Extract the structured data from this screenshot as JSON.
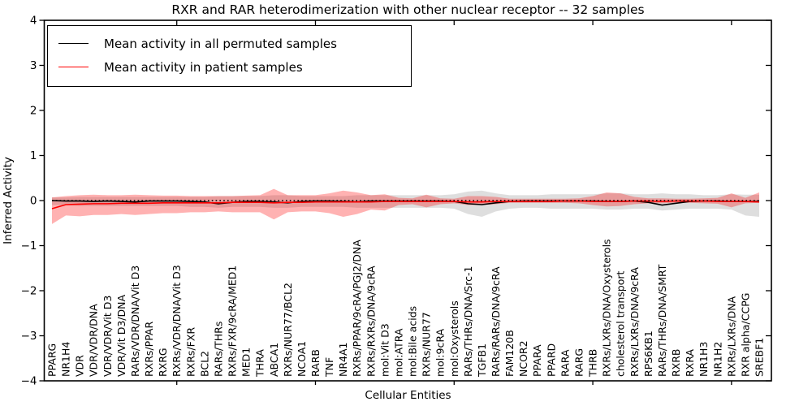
{
  "figure": {
    "title": "RXR and RAR heterodimerization with other nuclear receptor -- 32 samples",
    "xlabel": "Cellular Entities",
    "ylabel": "Inferred Activity"
  },
  "legend": {
    "items": [
      {
        "label": "Mean activity in all permuted samples",
        "color": "#000000"
      },
      {
        "label": "Mean activity in patient samples",
        "color": "#ff0000"
      }
    ]
  },
  "chart_data": {
    "type": "line",
    "title": "RXR and RAR heterodimerization with other nuclear receptor -- 32 samples",
    "xlabel": "Cellular Entities",
    "ylabel": "Inferred Activity",
    "ylim": [
      -4,
      4
    ],
    "yticks": [
      4,
      3,
      2,
      1,
      0,
      -1,
      -2,
      -3,
      -4
    ],
    "ytick_labels": [
      "4",
      "3",
      "2",
      "1",
      "0",
      "−1",
      "−2",
      "−3",
      "−4"
    ],
    "xtick_positions": [
      9,
      19,
      29,
      39,
      49
    ],
    "grid": false,
    "legend_position": "upper left",
    "zero_line": {
      "value": 0,
      "style": "dotted",
      "color": "#000000"
    },
    "band_colors": {
      "permuted": "rgba(0,0,0,0.13)",
      "patient": "rgba(255,0,0,0.30)"
    },
    "categories": [
      "PPARG",
      "NR1H4",
      "VDR",
      "VDR/VDR/DNA",
      "VDR/VDR/Vit D3",
      "VDR/Vit D3/DNA",
      "RARs/VDR/DNA/Vit D3",
      "RXRs/PPAR",
      "RXRG",
      "RXRs/VDR/DNA/Vit D3",
      "RXRs/FXR",
      "BCL2",
      "RARs/THRs",
      "RXRs/FXR/9cRA/MED1",
      "MED1",
      "THRA",
      "ABCA1",
      "RXRs/NUR77/BCL2",
      "NCOA1",
      "RARB",
      "TNF",
      "NR4A1",
      "RXRs/PPAR/9cRA/PGJ2/DNA",
      "RXRs/RXRs/DNA/9cRA",
      "mol:Vit D3",
      "mol:ATRA",
      "mol:Bile acids",
      "RXRs/NUR77",
      "mol:9cRA",
      "mol:Oxysterols",
      "RARs/THRs/DNA/Src-1",
      "TGFB1",
      "RARs/RARs/DNA/9cRA",
      "FAM120B",
      "NCOR2",
      "PPARA",
      "PPARD",
      "RARA",
      "RARG",
      "THRB",
      "RXRs/LXRs/DNA/Oxysterols",
      "cholesterol transport",
      "RXRs/LXRs/DNA/9cRA",
      "RPS6KB1",
      "RARs/THRs/DNA/SMRT",
      "RXRB",
      "RXRA",
      "NR1H3",
      "NR1H2",
      "RXRs/LXRs/DNA",
      "RXR alpha/CCPG",
      "SREBF1"
    ],
    "series": [
      {
        "name": "Mean activity in all permuted samples",
        "color": "#000000",
        "values": [
          0,
          -0.01,
          -0.01,
          -0.02,
          -0.01,
          -0.02,
          -0.03,
          -0.01,
          -0.01,
          -0.01,
          -0.02,
          -0.03,
          -0.07,
          -0.04,
          -0.02,
          -0.02,
          -0.03,
          -0.05,
          -0.02,
          -0.01,
          -0.01,
          -0.02,
          -0.03,
          -0.01,
          -0.01,
          -0.01,
          -0.01,
          -0.01,
          -0.01,
          -0.02,
          -0.07,
          -0.09,
          -0.05,
          -0.02,
          -0.01,
          -0.01,
          -0.01,
          -0.01,
          -0.01,
          -0.01,
          -0.02,
          -0.02,
          -0.01,
          -0.04,
          -0.1,
          -0.06,
          -0.02,
          -0.01,
          -0.01,
          -0.02,
          -0.02,
          -0.02
        ],
        "band_upper": [
          0.07,
          0.07,
          0.08,
          0.08,
          0.08,
          0.08,
          0.08,
          0.08,
          0.08,
          0.08,
          0.08,
          0.08,
          0.1,
          0.1,
          0.1,
          0.1,
          0.12,
          0.12,
          0.1,
          0.1,
          0.1,
          0.1,
          0.12,
          0.12,
          0.12,
          0.12,
          0.12,
          0.12,
          0.12,
          0.14,
          0.2,
          0.22,
          0.16,
          0.12,
          0.12,
          0.12,
          0.14,
          0.14,
          0.14,
          0.14,
          0.16,
          0.16,
          0.14,
          0.14,
          0.16,
          0.14,
          0.14,
          0.12,
          0.12,
          0.14,
          0.13,
          0.13
        ],
        "band_lower": [
          -0.1,
          -0.1,
          -0.12,
          -0.12,
          -0.12,
          -0.12,
          -0.12,
          -0.12,
          -0.12,
          -0.12,
          -0.14,
          -0.14,
          -0.16,
          -0.14,
          -0.14,
          -0.14,
          -0.16,
          -0.16,
          -0.14,
          -0.14,
          -0.14,
          -0.14,
          -0.16,
          -0.16,
          -0.16,
          -0.16,
          -0.16,
          -0.16,
          -0.16,
          -0.18,
          -0.3,
          -0.36,
          -0.24,
          -0.18,
          -0.16,
          -0.16,
          -0.18,
          -0.18,
          -0.18,
          -0.18,
          -0.2,
          -0.2,
          -0.18,
          -0.18,
          -0.22,
          -0.2,
          -0.18,
          -0.18,
          -0.18,
          -0.2,
          -0.33,
          -0.36
        ]
      },
      {
        "name": "Mean activity in patient samples",
        "color": "#ff0000",
        "values": [
          -0.18,
          -0.09,
          -0.08,
          -0.07,
          -0.07,
          -0.06,
          -0.06,
          -0.06,
          -0.05,
          -0.05,
          -0.05,
          -0.05,
          -0.05,
          -0.04,
          -0.04,
          -0.04,
          -0.05,
          -0.04,
          -0.04,
          -0.03,
          -0.03,
          -0.03,
          -0.03,
          -0.03,
          -0.02,
          -0.02,
          -0.02,
          -0.02,
          -0.02,
          -0.02,
          -0.03,
          -0.03,
          -0.02,
          -0.02,
          -0.02,
          -0.02,
          -0.02,
          -0.01,
          -0.01,
          -0.02,
          -0.02,
          -0.02,
          -0.01,
          -0.01,
          -0.02,
          -0.01,
          -0.01,
          -0.01,
          -0.02,
          -0.02,
          -0.02,
          -0.03
        ],
        "band_upper": [
          0.07,
          0.1,
          0.12,
          0.13,
          0.12,
          0.12,
          0.13,
          0.12,
          0.11,
          0.11,
          0.1,
          0.1,
          0.1,
          0.1,
          0.11,
          0.12,
          0.26,
          0.12,
          0.12,
          0.12,
          0.16,
          0.22,
          0.18,
          0.12,
          0.14,
          0.06,
          0.05,
          0.13,
          0.05,
          0.04,
          0.1,
          0.1,
          0.08,
          0.04,
          0.04,
          0.04,
          0.04,
          0.04,
          0.05,
          0.1,
          0.18,
          0.16,
          0.08,
          0.05,
          0.05,
          0.04,
          0.04,
          0.05,
          0.06,
          0.16,
          0.06,
          0.18
        ],
        "band_lower": [
          -0.52,
          -0.33,
          -0.35,
          -0.32,
          -0.32,
          -0.3,
          -0.32,
          -0.3,
          -0.28,
          -0.28,
          -0.26,
          -0.26,
          -0.24,
          -0.26,
          -0.26,
          -0.26,
          -0.42,
          -0.26,
          -0.24,
          -0.24,
          -0.28,
          -0.36,
          -0.3,
          -0.2,
          -0.22,
          -0.1,
          -0.08,
          -0.15,
          -0.08,
          -0.06,
          -0.1,
          -0.1,
          -0.08,
          -0.05,
          -0.05,
          -0.05,
          -0.05,
          -0.05,
          -0.06,
          -0.1,
          -0.13,
          -0.12,
          -0.08,
          -0.06,
          -0.06,
          -0.05,
          -0.05,
          -0.06,
          -0.07,
          -0.15,
          -0.06,
          -0.05
        ]
      }
    ]
  }
}
